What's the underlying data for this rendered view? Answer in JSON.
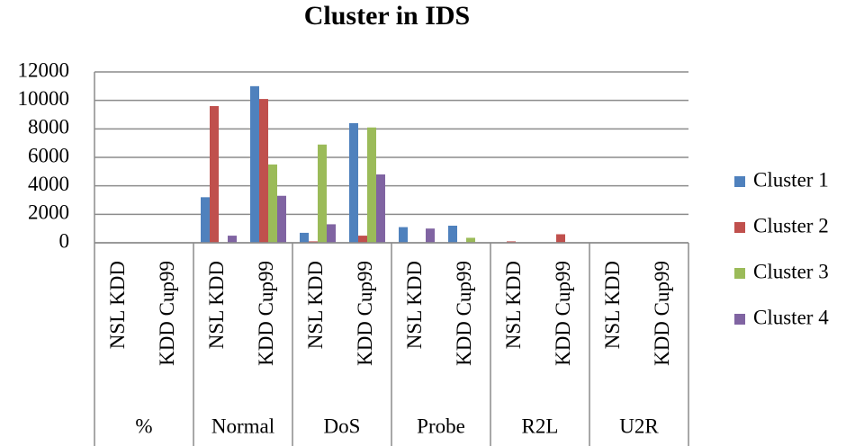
{
  "chart_data": {
    "type": "bar",
    "title": "Cluster in IDS",
    "categories": [
      "NSL KDD",
      "KDD Cup99",
      "NSL KDD",
      "KDD Cup99",
      "NSL KDD",
      "KDD Cup99",
      "NSL KDD",
      "KDD Cup99",
      "NSL KDD",
      "KDD Cup99",
      "NSL KDD",
      "KDD Cup99"
    ],
    "groups": [
      "%",
      "Normal",
      "DoS",
      "Probe",
      "R2L",
      "U2R"
    ],
    "series": [
      {
        "name": "Cluster 1",
        "color": "#4f81bd",
        "values": [
          0,
          0,
          3200,
          11000,
          700,
          8400,
          1100,
          1200,
          0,
          0,
          0,
          0
        ]
      },
      {
        "name": "Cluster 2",
        "color": "#c0504d",
        "values": [
          0,
          0,
          9600,
          10100,
          100,
          500,
          0,
          0,
          100,
          600,
          0,
          0
        ]
      },
      {
        "name": "Cluster 3",
        "color": "#9bbb59",
        "values": [
          0,
          0,
          0,
          5500,
          6900,
          8100,
          0,
          350,
          0,
          0,
          0,
          0
        ]
      },
      {
        "name": "Cluster 4",
        "color": "#8064a2",
        "values": [
          0,
          0,
          500,
          3300,
          1300,
          4800,
          1000,
          0,
          0,
          0,
          0,
          0
        ]
      }
    ],
    "ylim": [
      0,
      12000
    ],
    "yticks": [
      0,
      2000,
      4000,
      6000,
      8000,
      10000,
      12000
    ],
    "grid": true,
    "legend": "right"
  }
}
